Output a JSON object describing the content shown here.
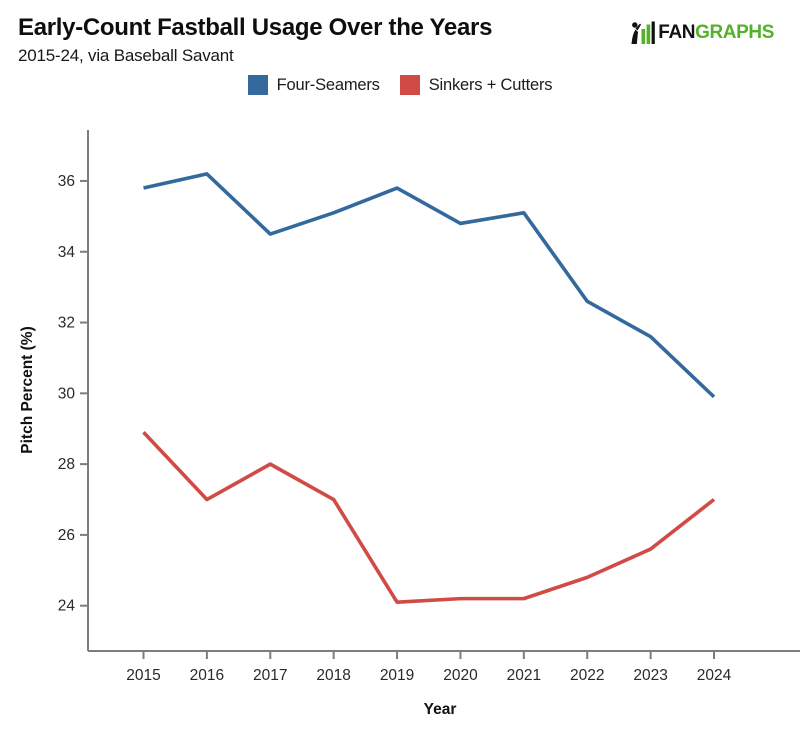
{
  "header": {
    "title": "Early-Count Fastball Usage Over the Years",
    "subtitle": "2015-24, via Baseball Savant"
  },
  "logo": {
    "fan": "FAN",
    "graphs": "GRAPHS",
    "green": "#54b12a",
    "black": "#111111"
  },
  "legend": {
    "items": [
      {
        "label": "Four-Seamers",
        "color": "#33699d"
      },
      {
        "label": "Sinkers + Cutters",
        "color": "#d04b46"
      }
    ]
  },
  "chart_data": {
    "type": "line",
    "title": "Early-Count Fastball Usage Over the Years",
    "subtitle": "2015-24, via Baseball Savant",
    "x": [
      2015,
      2016,
      2017,
      2018,
      2019,
      2020,
      2021,
      2022,
      2023,
      2024
    ],
    "series": [
      {
        "name": "Four-Seamers",
        "color": "#33699d",
        "values": [
          35.8,
          36.2,
          34.5,
          35.1,
          35.8,
          34.8,
          35.1,
          32.6,
          31.6,
          29.9
        ]
      },
      {
        "name": "Sinkers + Cutters",
        "color": "#d04b46",
        "values": [
          28.9,
          27.0,
          28.0,
          27.0,
          24.1,
          24.2,
          24.2,
          24.8,
          25.6,
          27.0
        ]
      }
    ],
    "xlabel": "Year",
    "ylabel": "Pitch Percent (%)",
    "yticks": [
      24,
      26,
      28,
      30,
      32,
      34,
      36
    ],
    "xticks": [
      "2015",
      "2016",
      "2017",
      "2018",
      "2019",
      "2020",
      "2021",
      "2022",
      "2023",
      "2024"
    ],
    "ylim": [
      22.72,
      37.44
    ],
    "grid": false,
    "legend_position": "top-center",
    "axis_color": "#7d7d7d",
    "tick_label_color": "#2a2a2a"
  }
}
